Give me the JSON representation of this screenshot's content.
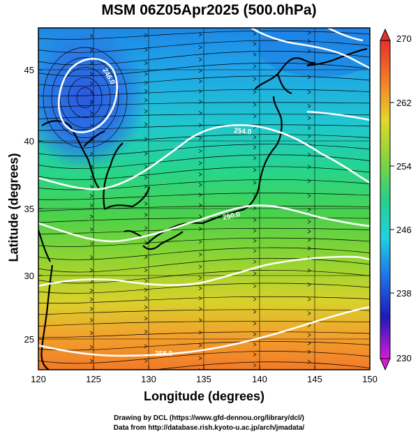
{
  "title": "MSM 06Z05Apr2025 (500.0hPa)",
  "x_axis": {
    "label": "Longitude (degrees)",
    "ticks": [
      "120",
      "125",
      "130",
      "135",
      "140",
      "145",
      "150"
    ]
  },
  "y_axis": {
    "label": "Latitude  (degrees)",
    "ticks": [
      "25",
      "30",
      "35",
      "40",
      "45"
    ]
  },
  "colorbar": {
    "ticks": [
      "270",
      "262",
      "254",
      "246",
      "238",
      "230"
    ]
  },
  "contour_labels": [
    "246.0",
    "250.0",
    "254.0",
    "258.0"
  ],
  "credits": {
    "line1": "Drawing by DCL (https://www.gfd-dennou.org/library/dcl/)",
    "line2": "Data from http://database.rish.kyoto-u.ac.jp/arch/jmadata/"
  }
}
